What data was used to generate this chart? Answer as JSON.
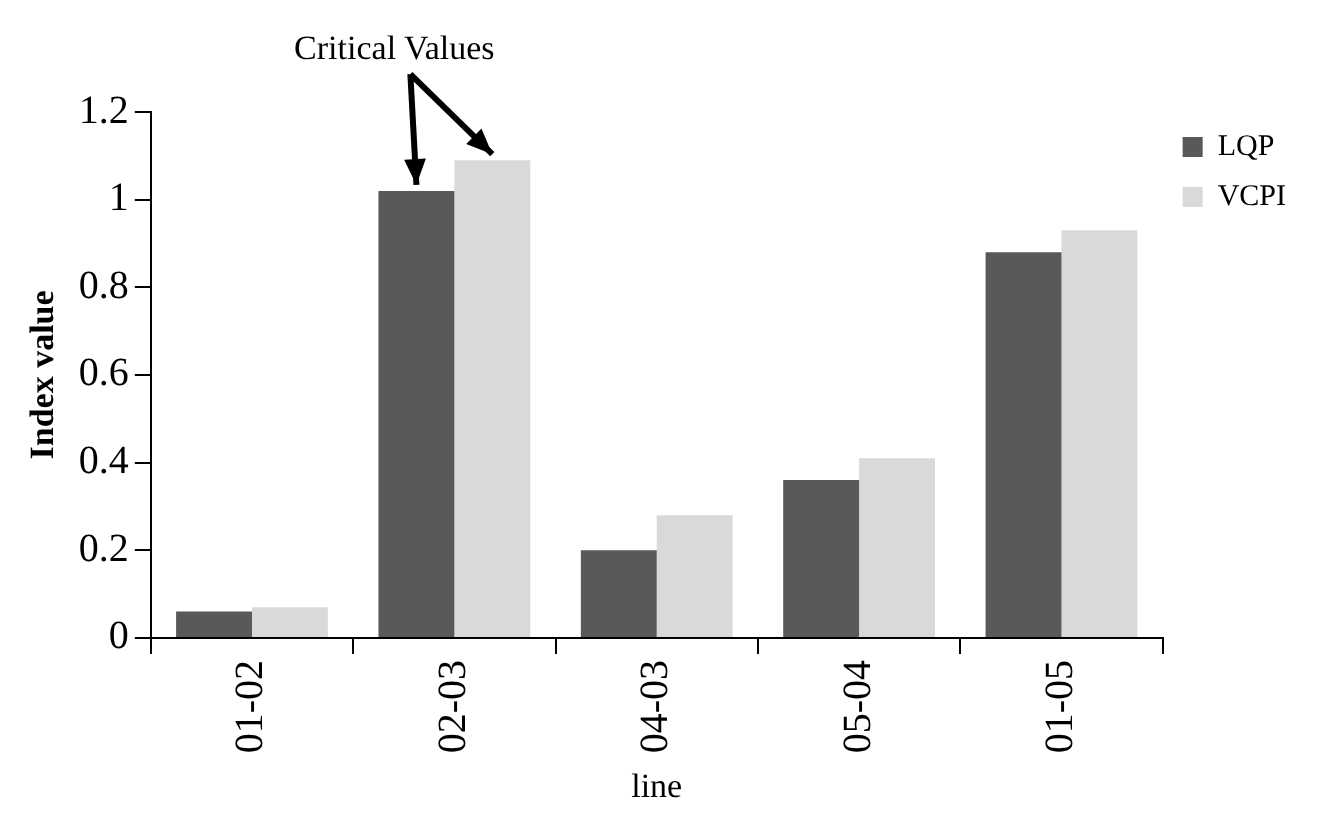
{
  "chart_data": {
    "type": "bar",
    "xlabel": "line",
    "ylabel": "Index value",
    "categories": [
      "01-02",
      "02-03",
      "04-03",
      "05-04",
      "01-05"
    ],
    "series": [
      {
        "name": "LQP",
        "color": "#595959",
        "values": [
          0.06,
          1.02,
          0.2,
          0.36,
          0.88
        ]
      },
      {
        "name": "VCPI",
        "color": "#d9d9d9",
        "values": [
          0.07,
          1.09,
          0.28,
          0.41,
          0.93
        ]
      }
    ],
    "ylim": [
      0,
      1.2
    ],
    "yticks": [
      0,
      0.2,
      0.4,
      0.6,
      0.8,
      1,
      1.2
    ],
    "grid": false,
    "legend": "top right",
    "annotations": [
      {
        "text": "Critical Values",
        "x": "02-03",
        "y": 1.09
      }
    ]
  }
}
